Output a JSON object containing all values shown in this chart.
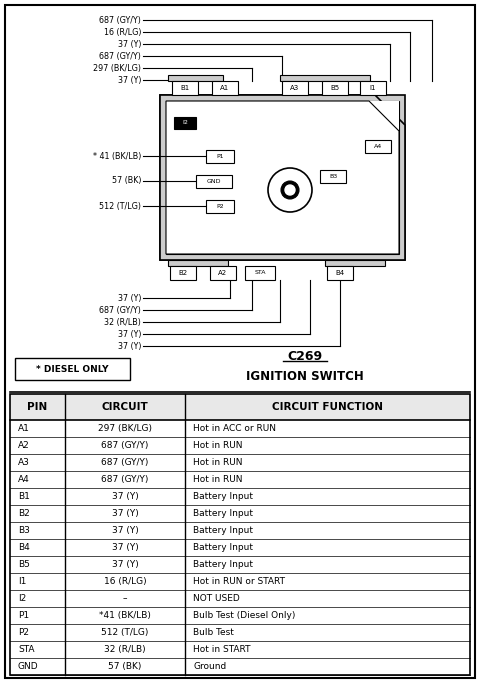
{
  "bg_color": "#ffffff",
  "border_color": "#000000",
  "diesel_note": "* DIESEL ONLY",
  "wire_labels_top": [
    "687 (GY/Y)",
    "16 (R/LG)",
    "37 (Y)",
    "687 (GY/Y)",
    "297 (BK/LG)",
    "37 (Y)"
  ],
  "wire_labels_mid": [
    "* 41 (BK/LB)",
    "57 (BK)",
    "512 (T/LG)"
  ],
  "wire_labels_bot": [
    "37 (Y)",
    "687 (GY/Y)",
    "32 (R/LB)",
    "37 (Y)",
    "37 (Y)"
  ],
  "table_headers": [
    "PIN",
    "CIRCUIT",
    "CIRCUIT FUNCTION"
  ],
  "table_rows": [
    [
      "A1",
      "297 (BK/LG)",
      "Hot in ACC or RUN"
    ],
    [
      "A2",
      "687 (GY/Y)",
      "Hot in RUN"
    ],
    [
      "A3",
      "687 (GY/Y)",
      "Hot in RUN"
    ],
    [
      "A4",
      "687 (GY/Y)",
      "Hot in RUN"
    ],
    [
      "B1",
      "37 (Y)",
      "Battery Input"
    ],
    [
      "B2",
      "37 (Y)",
      "Battery Input"
    ],
    [
      "B3",
      "37 (Y)",
      "Battery Input"
    ],
    [
      "B4",
      "37 (Y)",
      "Battery Input"
    ],
    [
      "B5",
      "37 (Y)",
      "Battery Input"
    ],
    [
      "I1",
      "16 (R/LG)",
      "Hot in RUN or START"
    ],
    [
      "I2",
      "–",
      "NOT USED"
    ],
    [
      "P1",
      "*41 (BK/LB)",
      "Bulb Test (Diesel Only)"
    ],
    [
      "P2",
      "512 (T/LG)",
      "Bulb Test"
    ],
    [
      "STA",
      "32 (R/LB)",
      "Hot in START"
    ],
    [
      "GND",
      "57 (BK)",
      "Ground"
    ]
  ]
}
